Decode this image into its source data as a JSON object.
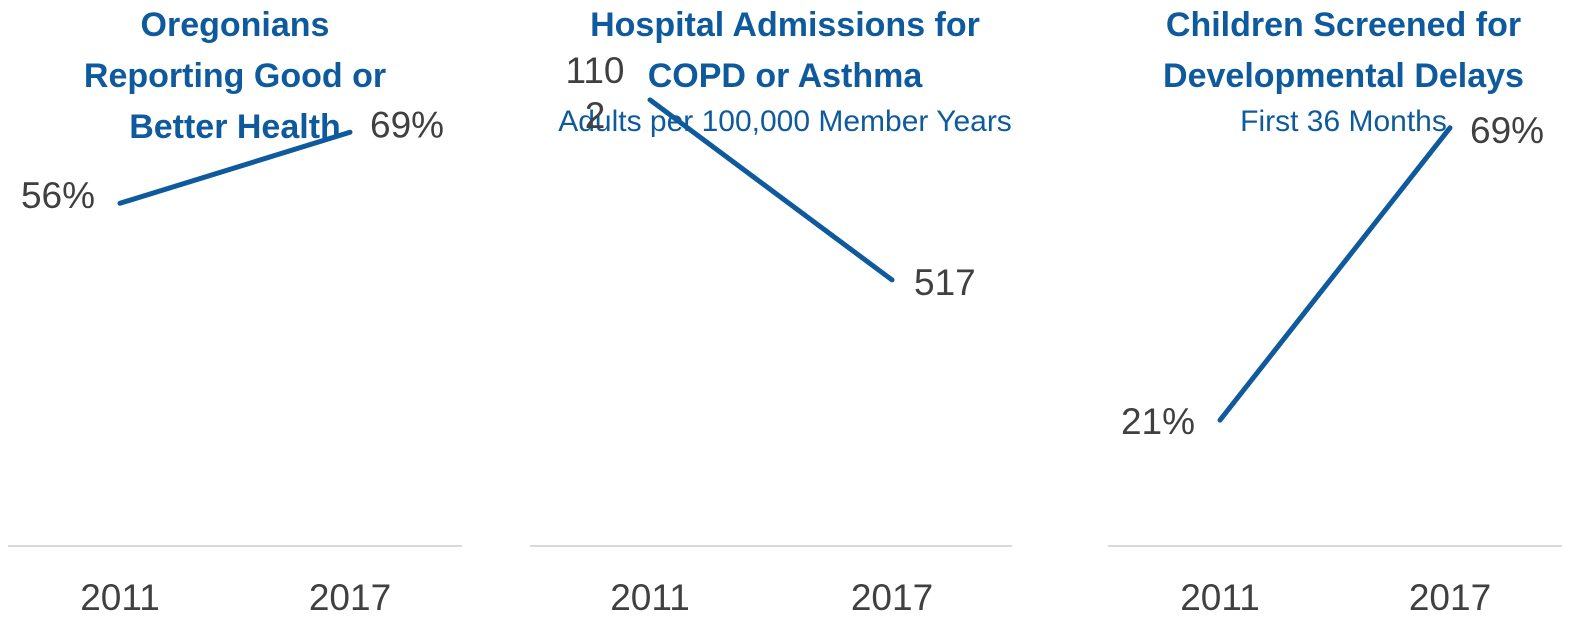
{
  "chart_data": [
    {
      "type": "line",
      "title": [
        "Oregonians",
        "Reporting Good or",
        "Better Health"
      ],
      "subtitle": "",
      "categories": [
        "2011",
        "2017"
      ],
      "series": [
        {
          "values": [
            56,
            69
          ]
        }
      ],
      "value_labels": [
        [
          "56%"
        ],
        [
          "69%"
        ]
      ],
      "ylim": [
        0,
        100
      ],
      "grid": false,
      "line_color": "#0f5a9c",
      "axis_color": "#d9d9d9"
    },
    {
      "type": "line",
      "title": [
        "Hospital Admissions for",
        "COPD or Asthma"
      ],
      "subtitle": "Adults per 100,000 Member Years",
      "categories": [
        "2011",
        "2017"
      ],
      "series": [
        {
          "values": [
            1102,
            517
          ]
        }
      ],
      "value_labels": [
        [
          "110",
          "2"
        ],
        [
          "517"
        ]
      ],
      "ylim": [
        0,
        1300
      ],
      "grid": false,
      "line_color": "#0f5a9c",
      "axis_color": "#d9d9d9"
    },
    {
      "type": "line",
      "title": [
        "Children Screened for",
        "Developmental Delays"
      ],
      "subtitle": "First 36 Months",
      "categories": [
        "2011",
        "2017"
      ],
      "series": [
        {
          "values": [
            21,
            69
          ]
        }
      ],
      "value_labels": [
        [
          "21%"
        ],
        [
          "69%"
        ]
      ],
      "ylim": [
        0,
        100
      ],
      "grid": false,
      "line_color": "#0f5a9c",
      "axis_color": "#d9d9d9"
    }
  ]
}
